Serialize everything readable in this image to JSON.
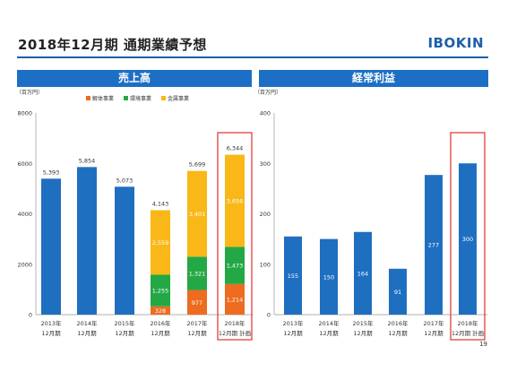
{
  "header": {
    "title": "2018年12月期  通期業績予想",
    "logo": "IBOKIN",
    "page_number": "19"
  },
  "chart_data": [
    {
      "type": "bar",
      "title": "売上高",
      "unit_label": "（百万円）",
      "ylim": [
        0,
        8000
      ],
      "yticks": [
        0,
        2000,
        4000,
        6000,
        8000
      ],
      "categories": [
        [
          "2013年",
          "12月期"
        ],
        [
          "2014年",
          "12月期"
        ],
        [
          "2015年",
          "12月期"
        ],
        [
          "2016年",
          "12月期"
        ],
        [
          "2017年",
          "12月期"
        ],
        [
          "2018年",
          "12月期 計画"
        ]
      ],
      "totals": [
        5393,
        5854,
        5073,
        4143,
        5699,
        6344
      ],
      "total_labels": [
        "5,393",
        "5,854",
        "5,073",
        "4,143",
        "5,699",
        "6,344"
      ],
      "legend": [
        "解体事業",
        "環境事業",
        "金属事業"
      ],
      "series": [
        {
          "name": "解体事業",
          "color": "#ee6b1f",
          "values": [
            null,
            null,
            null,
            328,
            977,
            1214
          ],
          "labels": [
            "",
            "",
            "",
            "328",
            "977",
            "1,214"
          ]
        },
        {
          "name": "環境事業",
          "color": "#24a845",
          "values": [
            null,
            null,
            null,
            1255,
            1321,
            1473
          ],
          "labels": [
            "",
            "",
            "",
            "1,255",
            "1,321",
            "1,473"
          ]
        },
        {
          "name": "金属事業",
          "color": "#f9b817",
          "values": [
            null,
            null,
            null,
            2559,
            3401,
            3656
          ],
          "labels": [
            "",
            "",
            "",
            "2,559",
            "3,401",
            "3,656"
          ]
        }
      ],
      "total_color": "#1f6fc1",
      "highlight_index": 5,
      "highlight_color": "#e03030"
    },
    {
      "type": "bar",
      "title": "経常利益",
      "unit_label": "（百万円）",
      "ylim": [
        0,
        400
      ],
      "yticks": [
        0,
        100,
        200,
        300,
        400
      ],
      "categories": [
        [
          "2013年",
          "12月期"
        ],
        [
          "2014年",
          "12月期"
        ],
        [
          "2015年",
          "12月期"
        ],
        [
          "2016年",
          "12月期"
        ],
        [
          "2017年",
          "12月期"
        ],
        [
          "2018年",
          "12月期 計画"
        ]
      ],
      "values": [
        155,
        150,
        164,
        91,
        277,
        300
      ],
      "labels": [
        "155",
        "150",
        "164",
        "91",
        "277",
        "300"
      ],
      "color": "#1f6fc1",
      "highlight_index": 5,
      "highlight_color": "#e03030"
    }
  ]
}
